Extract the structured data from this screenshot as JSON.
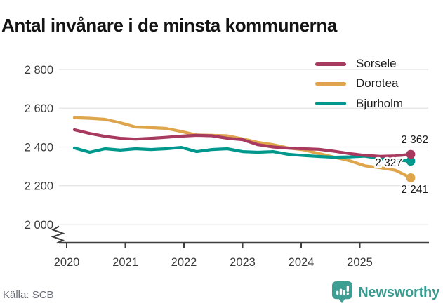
{
  "title": "Antal invånare i de minsta kommunerna",
  "source": "Källa: SCB",
  "branding": {
    "name": "Newsworthy"
  },
  "chart_data": {
    "type": "line",
    "title": "Antal invånare i de minsta kommunerna",
    "x_unit": "quarter",
    "x": [
      "2020-K1",
      "2020-K2",
      "2020-K3",
      "2020-K4",
      "2021-K1",
      "2021-K2",
      "2021-K3",
      "2021-K4",
      "2022-K1",
      "2022-K2",
      "2022-K3",
      "2022-K4",
      "2023-K1",
      "2023-K2",
      "2023-K3",
      "2023-K4",
      "2024-K1",
      "2024-K2",
      "2024-K3",
      "2024-K4",
      "2025-K1",
      "2025-K2",
      "2025-K3"
    ],
    "x_tick_labels": [
      "2020",
      "2021",
      "2022",
      "2023",
      "2024",
      "2025"
    ],
    "y_tick_labels": [
      "2 800",
      "2 600",
      "2 400",
      "2 200",
      "2 000"
    ],
    "y_tick_values": [
      2800,
      2600,
      2400,
      2200,
      2000
    ],
    "y_axis_break": true,
    "grid": "horizontal",
    "legend_position": "top-right",
    "axis_color": "#3f3f3f",
    "grid_color": "#e3e3e3",
    "series": [
      {
        "name": "Sorsele",
        "color": "#a8395f",
        "end_label": "2 362",
        "values": [
          2489,
          2470,
          2455,
          2445,
          2441,
          2445,
          2450,
          2456,
          2460,
          2458,
          2445,
          2438,
          2412,
          2400,
          2394,
          2391,
          2388,
          2378,
          2366,
          2357,
          2352,
          2354,
          2362
        ]
      },
      {
        "name": "Dorotea",
        "color": "#dea54c",
        "end_label": "2 241",
        "values": [
          2551,
          2548,
          2543,
          2525,
          2503,
          2500,
          2496,
          2480,
          2462,
          2460,
          2458,
          2442,
          2424,
          2412,
          2395,
          2385,
          2366,
          2347,
          2329,
          2303,
          2293,
          2280,
          2241
        ]
      },
      {
        "name": "Bjurholm",
        "color": "#00988c",
        "end_label": "2 327",
        "values": [
          2395,
          2373,
          2391,
          2384,
          2391,
          2387,
          2391,
          2398,
          2376,
          2387,
          2391,
          2376,
          2373,
          2376,
          2362,
          2356,
          2351,
          2347,
          2349,
          2353,
          2340,
          2333,
          2327
        ]
      }
    ]
  }
}
